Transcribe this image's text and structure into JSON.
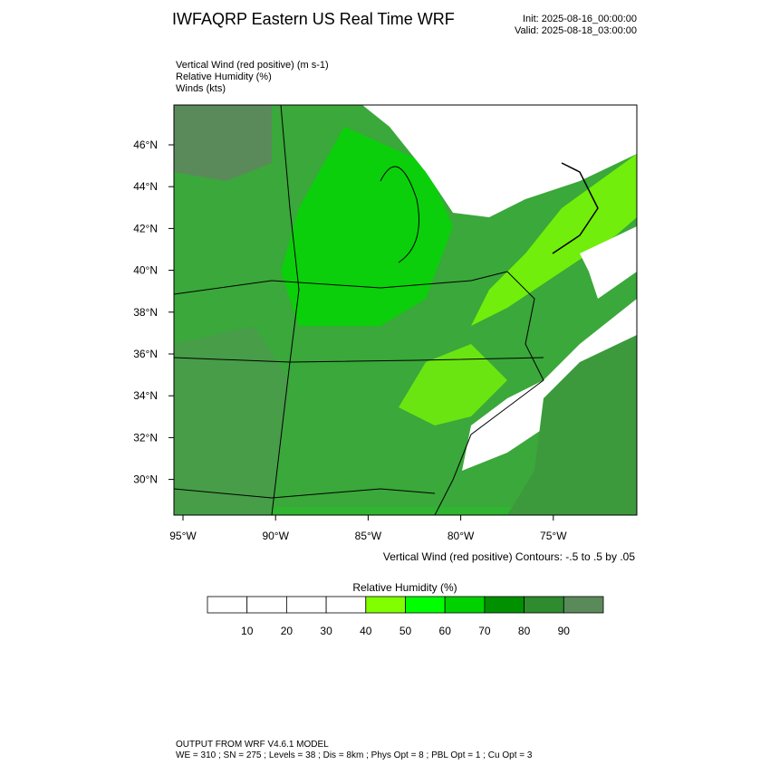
{
  "header": {
    "title": "IWFAQRP Eastern US Real Time WRF",
    "init": "Init: 2025-08-16_00:00:00",
    "valid": "Valid: 2025-08-18_03:00:00"
  },
  "fields": [
    "Vertical Wind (red positive)   (m s-1)",
    "Relative Humidity   (%)",
    "Winds   (kts)"
  ],
  "map": {
    "lat_labels": [
      "46°N",
      "44°N",
      "42°N",
      "40°N",
      "38°N",
      "36°N",
      "34°N",
      "32°N",
      "30°N"
    ],
    "lon_labels": [
      "95°W",
      "90°W",
      "85°W",
      "80°W",
      "75°W"
    ],
    "contour_note": "Vertical Wind (red positive) Contours: -.5 to .5 by .05"
  },
  "colorbar": {
    "title": "Relative Humidity  (%)",
    "ticks": [
      10,
      20,
      30,
      40,
      50,
      60,
      70,
      80,
      90
    ],
    "colors": [
      "#ffffff",
      "#ffffff",
      "#ffffff",
      "#ffffff",
      "#80ff00",
      "#00ff00",
      "#00d200",
      "#009000",
      "#2e8b2e",
      "#5a8a5a"
    ]
  },
  "footer": {
    "line1": "OUTPUT FROM WRF V4.6.1 MODEL",
    "line2": "WE = 310 ; SN = 275 ; Levels = 38 ; Dis = 8km ; Phys Opt = 8 ; PBL Opt = 1 ; Cu Opt = 3"
  }
}
